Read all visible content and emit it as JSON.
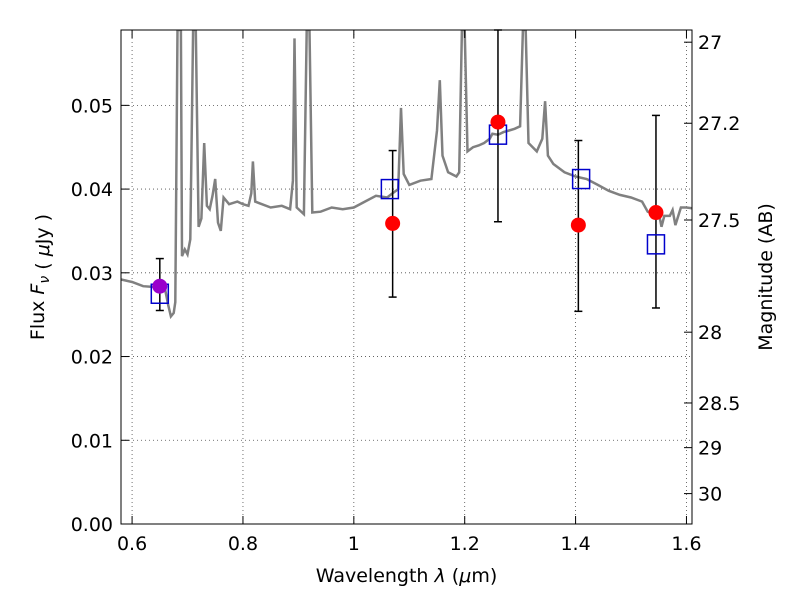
{
  "chart_data": {
    "type": "scatter",
    "xlabel": "Wavelength  λ (μm)",
    "ylabel": "Flux  F_ν  ( μJy )",
    "y2label": "Magnitude (AB)",
    "xlim": [
      0.58,
      1.61
    ],
    "ylim": [
      0.0,
      0.059
    ],
    "grid": true,
    "x_ticks": [
      0.6,
      0.8,
      1.0,
      1.2,
      1.4,
      1.6
    ],
    "x_tick_labels": [
      "0.6",
      "0.8",
      "1",
      "1.2",
      "1.4",
      "1.6"
    ],
    "y_ticks": [
      0.0,
      0.01,
      0.02,
      0.03,
      0.04,
      0.05
    ],
    "y_tick_labels": [
      "0.00",
      "0.01",
      "0.02",
      "0.03",
      "0.04",
      "0.05"
    ],
    "y2_ticks": [
      27,
      27.2,
      27.5,
      28,
      28.5,
      29,
      30
    ],
    "y2_tick_labels": [
      "27",
      "27.2",
      "27.5",
      "28",
      "28.5",
      "29",
      "30"
    ],
    "series": [
      {
        "kind": "line",
        "color": "#808080",
        "points": [
          [
            0.58,
            0.0292
          ],
          [
            0.6,
            0.0289
          ],
          [
            0.62,
            0.0284
          ],
          [
            0.64,
            0.0283
          ],
          [
            0.66,
            0.0279
          ],
          [
            0.665,
            0.0262
          ],
          [
            0.67,
            0.0248
          ],
          [
            0.675,
            0.0252
          ],
          [
            0.678,
            0.0265
          ],
          [
            0.682,
            0.059
          ],
          [
            0.688,
            0.059
          ],
          [
            0.69,
            0.032
          ],
          [
            0.695,
            0.0328
          ],
          [
            0.7,
            0.0322
          ],
          [
            0.705,
            0.034
          ],
          [
            0.71,
            0.059
          ],
          [
            0.715,
            0.059
          ],
          [
            0.72,
            0.0355
          ],
          [
            0.725,
            0.0365
          ],
          [
            0.73,
            0.0455
          ],
          [
            0.735,
            0.038
          ],
          [
            0.74,
            0.0376
          ],
          [
            0.745,
            0.0392
          ],
          [
            0.75,
            0.0412
          ],
          [
            0.755,
            0.036
          ],
          [
            0.76,
            0.035
          ],
          [
            0.765,
            0.039
          ],
          [
            0.775,
            0.0382
          ],
          [
            0.79,
            0.0385
          ],
          [
            0.8,
            0.0382
          ],
          [
            0.81,
            0.038
          ],
          [
            0.815,
            0.0395
          ],
          [
            0.818,
            0.0433
          ],
          [
            0.822,
            0.0385
          ],
          [
            0.83,
            0.0383
          ],
          [
            0.85,
            0.0378
          ],
          [
            0.87,
            0.038
          ],
          [
            0.885,
            0.0376
          ],
          [
            0.89,
            0.041
          ],
          [
            0.893,
            0.058
          ],
          [
            0.897,
            0.0378
          ],
          [
            0.91,
            0.037
          ],
          [
            0.915,
            0.059
          ],
          [
            0.92,
            0.059
          ],
          [
            0.925,
            0.0372
          ],
          [
            0.94,
            0.0373
          ],
          [
            0.96,
            0.0378
          ],
          [
            0.98,
            0.0376
          ],
          [
            1.0,
            0.0378
          ],
          [
            1.02,
            0.0385
          ],
          [
            1.04,
            0.0392
          ],
          [
            1.06,
            0.039
          ],
          [
            1.07,
            0.0395
          ],
          [
            1.08,
            0.04
          ],
          [
            1.085,
            0.0497
          ],
          [
            1.09,
            0.0418
          ],
          [
            1.1,
            0.0405
          ],
          [
            1.12,
            0.041
          ],
          [
            1.14,
            0.0412
          ],
          [
            1.15,
            0.047
          ],
          [
            1.155,
            0.053
          ],
          [
            1.16,
            0.044
          ],
          [
            1.17,
            0.042
          ],
          [
            1.185,
            0.0415
          ],
          [
            1.19,
            0.042
          ],
          [
            1.195,
            0.059
          ],
          [
            1.2,
            0.059
          ],
          [
            1.205,
            0.0445
          ],
          [
            1.215,
            0.045
          ],
          [
            1.225,
            0.0452
          ],
          [
            1.235,
            0.0455
          ],
          [
            1.245,
            0.046
          ],
          [
            1.25,
            0.0466
          ],
          [
            1.26,
            0.0465
          ],
          [
            1.27,
            0.0468
          ],
          [
            1.28,
            0.047
          ],
          [
            1.29,
            0.0472
          ],
          [
            1.3,
            0.0475
          ],
          [
            1.305,
            0.059
          ],
          [
            1.31,
            0.059
          ],
          [
            1.315,
            0.0455
          ],
          [
            1.33,
            0.0445
          ],
          [
            1.34,
            0.046
          ],
          [
            1.345,
            0.0505
          ],
          [
            1.35,
            0.044
          ],
          [
            1.36,
            0.043
          ],
          [
            1.38,
            0.042
          ],
          [
            1.4,
            0.0415
          ],
          [
            1.42,
            0.0412
          ],
          [
            1.44,
            0.0405
          ],
          [
            1.46,
            0.0398
          ],
          [
            1.48,
            0.0393
          ],
          [
            1.5,
            0.039
          ],
          [
            1.52,
            0.0385
          ],
          [
            1.53,
            0.0373
          ],
          [
            1.54,
            0.037
          ],
          [
            1.55,
            0.0372
          ],
          [
            1.555,
            0.0355
          ],
          [
            1.56,
            0.0368
          ],
          [
            1.57,
            0.0368
          ],
          [
            1.575,
            0.0375
          ],
          [
            1.58,
            0.0357
          ],
          [
            1.59,
            0.0378
          ],
          [
            1.6,
            0.0378
          ],
          [
            1.61,
            0.0377
          ]
        ]
      },
      {
        "kind": "model-box",
        "color": "#0000cc",
        "points": [
          [
            0.65,
            0.0275
          ],
          [
            1.065,
            0.04
          ],
          [
            1.26,
            0.0465
          ],
          [
            1.41,
            0.0412
          ],
          [
            1.545,
            0.0334
          ]
        ]
      },
      {
        "kind": "observed-point",
        "color": "#ff0000",
        "points": [
          {
            "x": 0.65,
            "y": 0.0284,
            "err_low": 0.0029,
            "err_high": 0.0033,
            "color": "#9900cc"
          },
          {
            "x": 1.07,
            "y": 0.0359,
            "err_low": 0.0088,
            "err_high": 0.0087
          },
          {
            "x": 1.26,
            "y": 0.048,
            "err_low": 0.0119,
            "err_high": 0.011
          },
          {
            "x": 1.405,
            "y": 0.0357,
            "err_low": 0.0103,
            "err_high": 0.0101
          },
          {
            "x": 1.545,
            "y": 0.0372,
            "err_low": 0.0114,
            "err_high": 0.0116
          }
        ]
      }
    ]
  }
}
